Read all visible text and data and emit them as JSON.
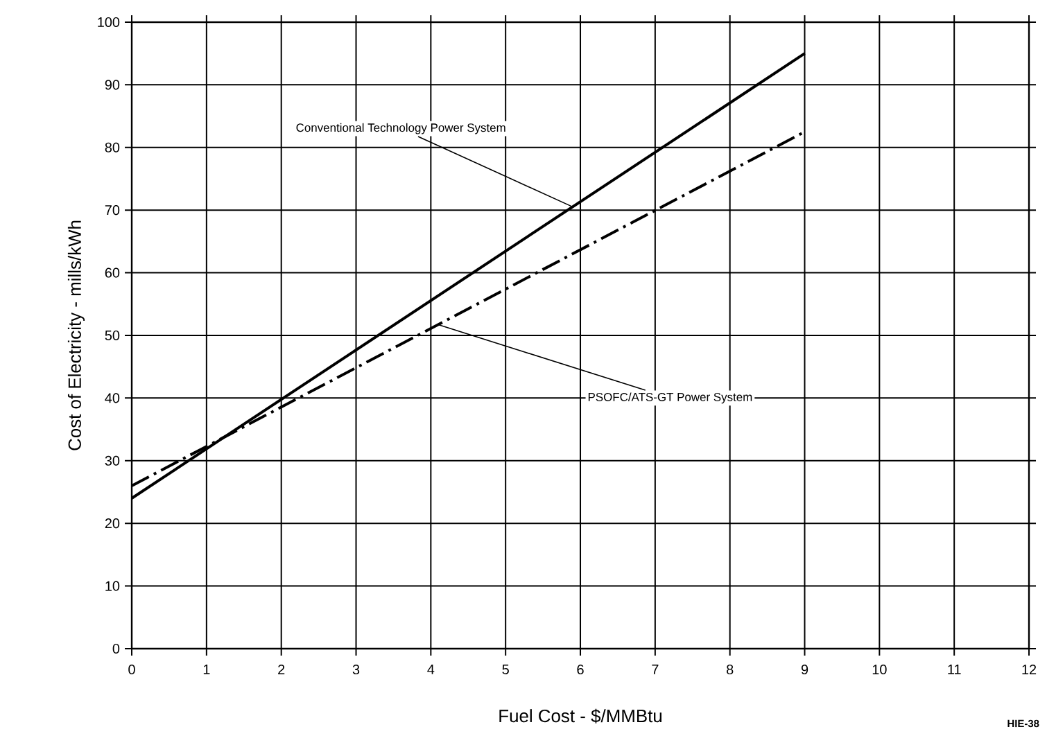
{
  "chart_data": {
    "type": "line",
    "xlabel": "Fuel Cost - $/MMBtu",
    "ylabel": "Cost of Electricity - mills/kWh",
    "series": [
      {
        "values": [
          24,
          95
        ],
        "color": "#000000",
        "line_style": "solid"
      },
      {
        "values": [
          26,
          82.5
        ],
        "color": "#000000",
        "line_style": "dashed"
      }
    ],
    "x": [
      0,
      9
    ],
    "annotations": [
      {
        "text": "Conventional Technology Power System",
        "x": 5.9,
        "y": 70.5
      },
      {
        "text": "PSOFC/ATS-GT Power System",
        "x": 4.1,
        "y": 51.7
      },
      "HIE-38"
    ],
    "xlim": [
      0,
      12
    ],
    "ylim": [
      0,
      100
    ],
    "xticks": [
      0,
      1,
      2,
      3,
      4,
      5,
      6,
      7,
      8,
      9,
      10,
      11,
      12
    ],
    "yticks": [
      0,
      10,
      20,
      30,
      40,
      50,
      60,
      70,
      80,
      90,
      100
    ],
    "grid": true,
    "marker": "none"
  }
}
